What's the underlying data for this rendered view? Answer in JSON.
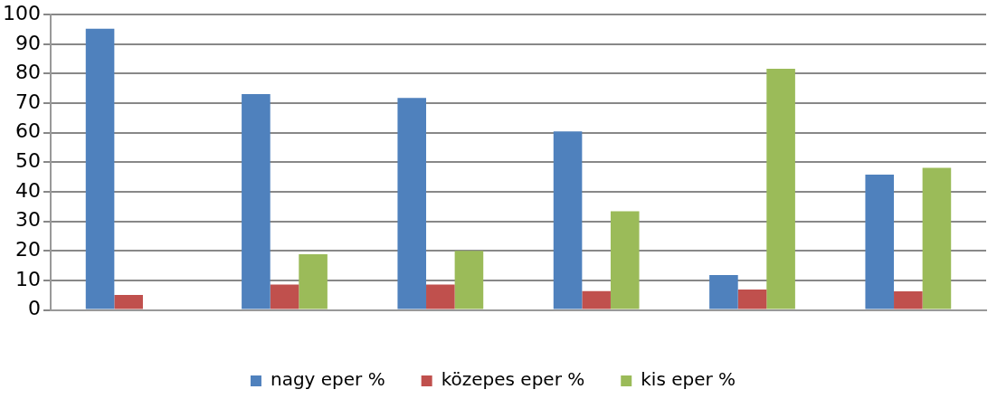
{
  "chart_data": {
    "type": "bar",
    "categories": [
      null,
      null,
      null,
      null,
      null,
      null
    ],
    "series": [
      {
        "name": "nagy eper %",
        "color": "#4f81bd",
        "values": [
          95.2,
          73.1,
          71.8,
          60.5,
          11.8,
          45.8
        ]
      },
      {
        "name": "közepes eper %",
        "color": "#c0504d",
        "values": [
          5.1,
          8.6,
          8.6,
          6.4,
          6.9,
          6.3
        ]
      },
      {
        "name": "kis eper %",
        "color": "#9bbb59",
        "values": [
          0,
          18.9,
          20,
          33.4,
          81.7,
          48.1
        ]
      }
    ],
    "ylim": [
      0,
      100
    ],
    "yticks": [
      0,
      10,
      20,
      30,
      40,
      50,
      60,
      70,
      80,
      90,
      100
    ],
    "grid": "y",
    "legend": "bottom"
  }
}
